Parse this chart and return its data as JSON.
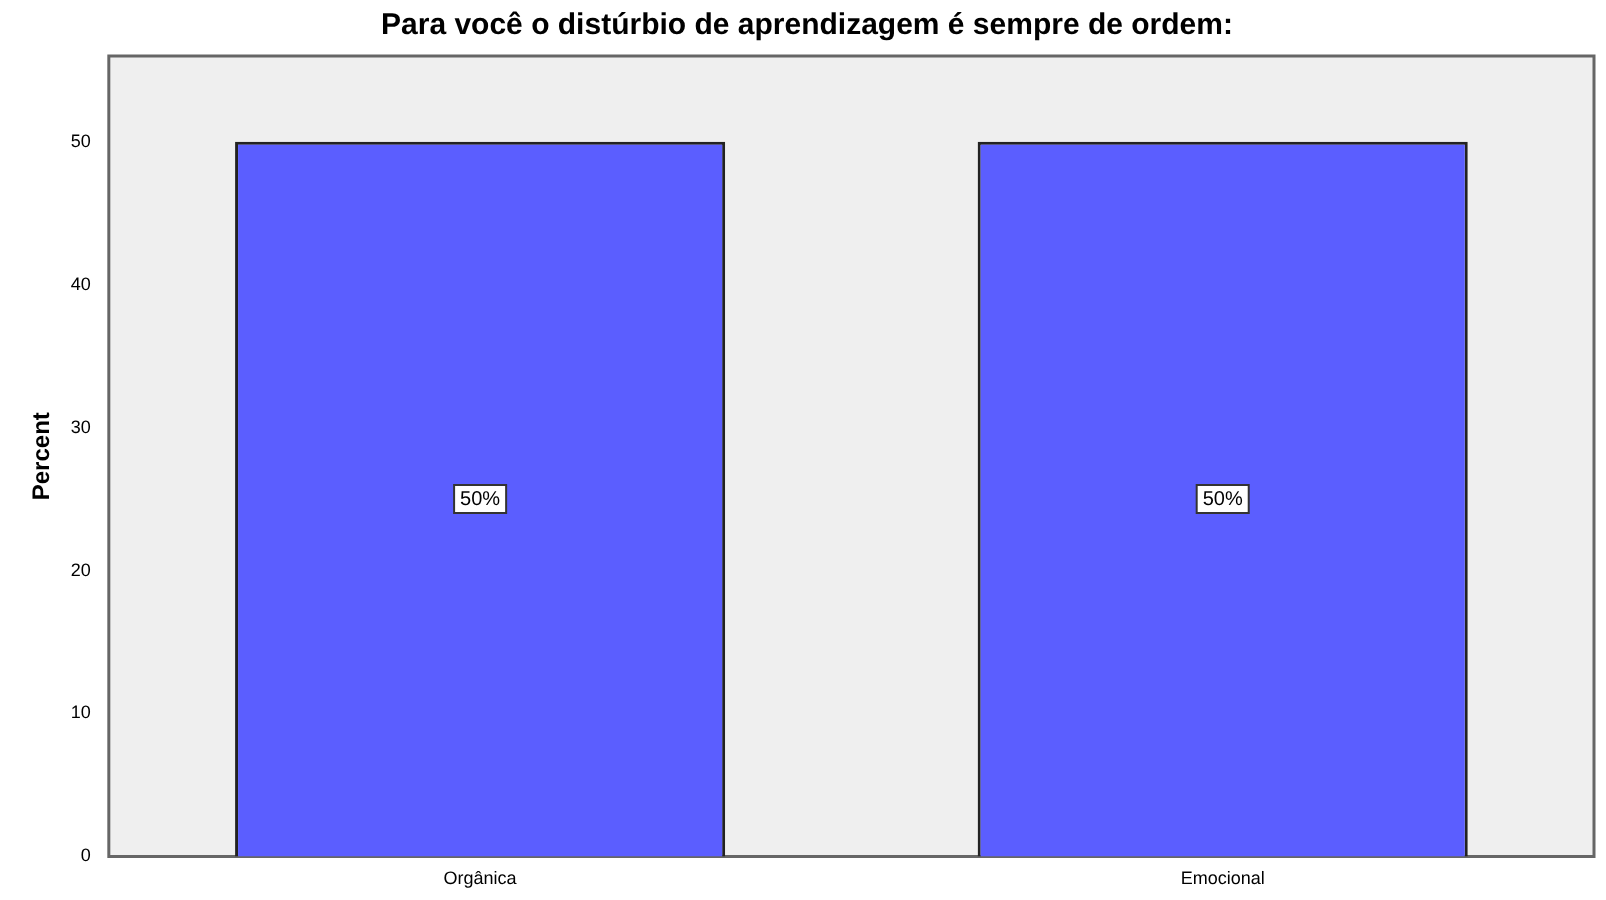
{
  "chart_data": {
    "type": "bar",
    "title": "Para você o distúrbio de aprendizagem é sempre de ordem:",
    "ylabel": "Percent",
    "categories": [
      "Orgânica",
      "Emocional"
    ],
    "values": [
      50,
      50
    ],
    "value_labels": [
      "50%",
      "50%"
    ],
    "color": "#5b5eff",
    "ylim": [
      0,
      56
    ],
    "yticks": [
      0,
      10,
      20,
      30,
      40,
      50
    ],
    "grid": false,
    "legend": false
  }
}
